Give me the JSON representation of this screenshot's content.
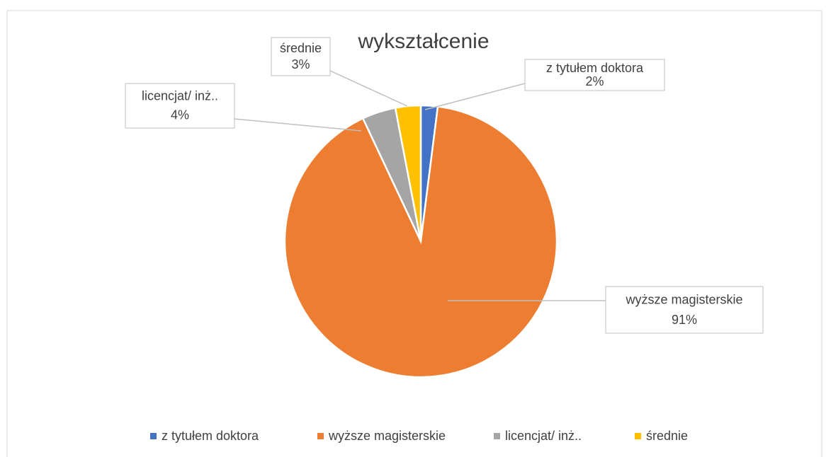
{
  "chart_data": {
    "type": "pie",
    "title": "wykształcenie",
    "categories": [
      "z tytułem doktora",
      "wyższe magisterskie",
      "licencjat/ inż..",
      "średnie"
    ],
    "values": [
      2,
      91,
      4,
      3
    ],
    "value_labels": [
      "2%",
      "91%",
      "4%",
      "3%"
    ],
    "colors": [
      "#4472c4",
      "#ed7d31",
      "#a5a5a5",
      "#ffc000"
    ],
    "legend": "bottom"
  }
}
